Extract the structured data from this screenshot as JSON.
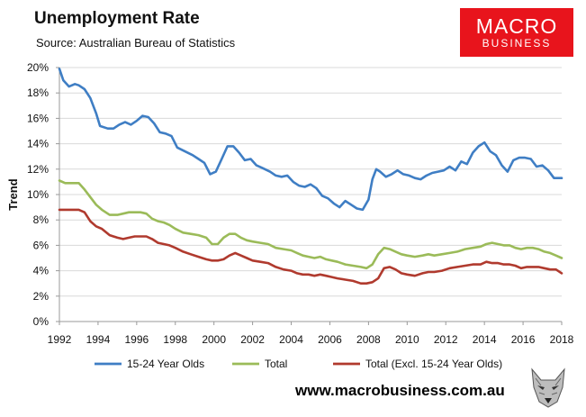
{
  "header": {
    "title": "Unemployment Rate",
    "source": "Source: Australian Bureau of Statistics"
  },
  "logo": {
    "line1": "MACRO",
    "line2": "BUSINESS"
  },
  "footer": {
    "url": "www.macrobusiness.com.au"
  },
  "colors": {
    "youth": "#3f7ec4",
    "total": "#9bbb59",
    "excl": "#b03a2e",
    "grid": "#d9d9d9",
    "logo_bg": "#e8141c"
  },
  "chart_data": {
    "type": "line",
    "title": "Unemployment Rate",
    "xlabel": "",
    "ylabel": "Trend",
    "xlim": [
      1992,
      2018
    ],
    "ylim": [
      0,
      20
    ],
    "x_ticks": [
      1992,
      1994,
      1996,
      1998,
      2000,
      2002,
      2004,
      2006,
      2008,
      2010,
      2012,
      2014,
      2016,
      2018
    ],
    "y_ticks": [
      0,
      2,
      4,
      6,
      8,
      10,
      12,
      14,
      16,
      18,
      20
    ],
    "y_tick_format": "%",
    "legend_position": "bottom",
    "series": [
      {
        "name": "15-24 Year Olds",
        "color": "#3f7ec4",
        "x": [
          1992,
          1992.2,
          1992.5,
          1992.8,
          1993,
          1993.3,
          1993.6,
          1993.9,
          1994.1,
          1994.5,
          1994.8,
          1995.1,
          1995.4,
          1995.7,
          1996,
          1996.3,
          1996.6,
          1996.9,
          1997.2,
          1997.5,
          1997.8,
          1998.1,
          1998.5,
          1998.9,
          1999.2,
          1999.5,
          1999.8,
          2000.1,
          2000.4,
          2000.7,
          2001,
          2001.3,
          2001.6,
          2001.9,
          2002.2,
          2002.5,
          2002.9,
          2003.2,
          2003.5,
          2003.8,
          2004.1,
          2004.4,
          2004.7,
          2005,
          2005.3,
          2005.6,
          2005.9,
          2006.2,
          2006.5,
          2006.8,
          2007.1,
          2007.4,
          2007.7,
          2008,
          2008.2,
          2008.4,
          2008.6,
          2008.9,
          2009.2,
          2009.5,
          2009.8,
          2010.1,
          2010.4,
          2010.7,
          2011,
          2011.3,
          2011.6,
          2011.9,
          2012.2,
          2012.5,
          2012.8,
          2013.1,
          2013.4,
          2013.7,
          2014,
          2014.3,
          2014.6,
          2014.9,
          2015.2,
          2015.5,
          2015.8,
          2016.1,
          2016.4,
          2016.7,
          2017,
          2017.3,
          2017.6,
          2017.9,
          2018
        ],
        "values": [
          19.9,
          19,
          18.5,
          18.7,
          18.6,
          18.3,
          17.6,
          16.4,
          15.4,
          15.2,
          15.2,
          15.5,
          15.7,
          15.5,
          15.8,
          16.2,
          16.1,
          15.6,
          14.9,
          14.8,
          14.6,
          13.7,
          13.4,
          13.1,
          12.8,
          12.5,
          11.6,
          11.8,
          12.8,
          13.8,
          13.8,
          13.3,
          12.7,
          12.8,
          12.3,
          12.1,
          11.8,
          11.5,
          11.4,
          11.5,
          11.0,
          10.7,
          10.6,
          10.8,
          10.5,
          9.9,
          9.7,
          9.3,
          9.0,
          9.5,
          9.2,
          8.9,
          8.8,
          9.6,
          11.2,
          12,
          11.8,
          11.4,
          11.6,
          11.9,
          11.6,
          11.5,
          11.3,
          11.2,
          11.5,
          11.7,
          11.8,
          11.9,
          12.2,
          11.9,
          12.6,
          12.4,
          13.3,
          13.8,
          14.1,
          13.4,
          13.1,
          12.3,
          11.8,
          12.7,
          12.9,
          12.9,
          12.8,
          12.2,
          12.3,
          11.9,
          11.3,
          11.3,
          11.3
        ]
      },
      {
        "name": "Total",
        "color": "#9bbb59",
        "x": [
          1992,
          1992.3,
          1992.6,
          1993,
          1993.3,
          1993.6,
          1993.9,
          1994.2,
          1994.6,
          1995,
          1995.3,
          1995.6,
          1995.9,
          1996.2,
          1996.5,
          1996.8,
          1997.1,
          1997.4,
          1997.7,
          1998,
          1998.4,
          1998.8,
          1999.2,
          1999.6,
          1999.9,
          2000.2,
          2000.5,
          2000.8,
          2001.1,
          2001.4,
          2001.7,
          2002,
          2002.4,
          2002.8,
          2003.2,
          2003.6,
          2004,
          2004.3,
          2004.6,
          2004.9,
          2005.2,
          2005.5,
          2005.8,
          2006.1,
          2006.4,
          2006.8,
          2007.2,
          2007.6,
          2007.9,
          2008.2,
          2008.5,
          2008.8,
          2009.1,
          2009.4,
          2009.7,
          2010,
          2010.4,
          2010.8,
          2011.1,
          2011.4,
          2011.8,
          2012.2,
          2012.6,
          2013,
          2013.4,
          2013.8,
          2014.1,
          2014.4,
          2014.7,
          2015,
          2015.3,
          2015.6,
          2015.9,
          2016.2,
          2016.5,
          2016.8,
          2017.1,
          2017.4,
          2017.7,
          2018
        ],
        "values": [
          11.1,
          10.9,
          10.9,
          10.9,
          10.4,
          9.8,
          9.2,
          8.8,
          8.4,
          8.4,
          8.5,
          8.6,
          8.6,
          8.6,
          8.5,
          8.1,
          7.9,
          7.8,
          7.6,
          7.3,
          7.0,
          6.9,
          6.8,
          6.6,
          6.1,
          6.1,
          6.6,
          6.9,
          6.9,
          6.6,
          6.4,
          6.3,
          6.2,
          6.1,
          5.8,
          5.7,
          5.6,
          5.4,
          5.2,
          5.1,
          5.0,
          5.1,
          4.9,
          4.8,
          4.7,
          4.5,
          4.4,
          4.3,
          4.2,
          4.5,
          5.3,
          5.8,
          5.7,
          5.5,
          5.3,
          5.2,
          5.1,
          5.2,
          5.3,
          5.2,
          5.3,
          5.4,
          5.5,
          5.7,
          5.8,
          5.9,
          6.1,
          6.2,
          6.1,
          6.0,
          6.0,
          5.8,
          5.7,
          5.8,
          5.8,
          5.7,
          5.5,
          5.4,
          5.2,
          5.0
        ]
      },
      {
        "name": "Total (Excl. 15-24 Year Olds)",
        "color": "#b03a2e",
        "x": [
          1992,
          1992.3,
          1992.6,
          1993,
          1993.3,
          1993.6,
          1993.9,
          1994.2,
          1994.6,
          1995,
          1995.3,
          1995.6,
          1995.9,
          1996.2,
          1996.5,
          1996.8,
          1997.1,
          1997.4,
          1997.7,
          1998,
          1998.4,
          1998.8,
          1999.2,
          1999.6,
          1999.9,
          2000.2,
          2000.5,
          2000.8,
          2001.1,
          2001.4,
          2001.7,
          2002,
          2002.4,
          2002.8,
          2003.2,
          2003.6,
          2004,
          2004.3,
          2004.6,
          2004.9,
          2005.2,
          2005.5,
          2005.8,
          2006.1,
          2006.4,
          2006.8,
          2007.2,
          2007.6,
          2007.9,
          2008.2,
          2008.5,
          2008.8,
          2009.1,
          2009.4,
          2009.7,
          2010,
          2010.4,
          2010.8,
          2011.1,
          2011.4,
          2011.8,
          2012.2,
          2012.6,
          2013,
          2013.4,
          2013.8,
          2014.1,
          2014.4,
          2014.7,
          2015,
          2015.3,
          2015.6,
          2015.9,
          2016.2,
          2016.5,
          2016.8,
          2017.1,
          2017.4,
          2017.7,
          2018
        ],
        "values": [
          8.8,
          8.8,
          8.8,
          8.8,
          8.6,
          7.9,
          7.5,
          7.3,
          6.8,
          6.6,
          6.5,
          6.6,
          6.7,
          6.7,
          6.7,
          6.5,
          6.2,
          6.1,
          6.0,
          5.8,
          5.5,
          5.3,
          5.1,
          4.9,
          4.8,
          4.8,
          4.9,
          5.2,
          5.4,
          5.2,
          5.0,
          4.8,
          4.7,
          4.6,
          4.3,
          4.1,
          4.0,
          3.8,
          3.7,
          3.7,
          3.6,
          3.7,
          3.6,
          3.5,
          3.4,
          3.3,
          3.2,
          3.0,
          3.0,
          3.1,
          3.4,
          4.2,
          4.3,
          4.1,
          3.8,
          3.7,
          3.6,
          3.8,
          3.9,
          3.9,
          4.0,
          4.2,
          4.3,
          4.4,
          4.5,
          4.5,
          4.7,
          4.6,
          4.6,
          4.5,
          4.5,
          4.4,
          4.2,
          4.3,
          4.3,
          4.3,
          4.2,
          4.1,
          4.1,
          3.8
        ]
      }
    ]
  }
}
